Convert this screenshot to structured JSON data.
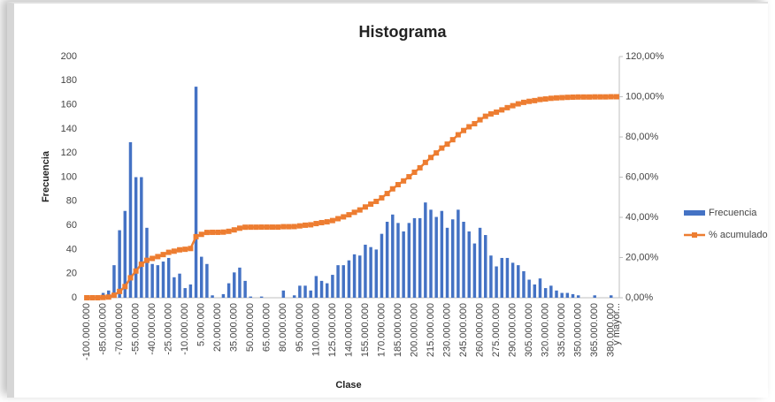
{
  "chart_data": {
    "type": "histogram",
    "title": "Histograma",
    "x_label": "Clase",
    "y_label": "Frecuencia",
    "categories": [
      "-100.000.000",
      null,
      null,
      "-85.000.000",
      null,
      null,
      "-70.000.000",
      null,
      null,
      "-55.000.000",
      null,
      null,
      "-40.000.000",
      null,
      null,
      "-25.000.000",
      null,
      null,
      "-10.000.000",
      null,
      null,
      "5.000.000",
      null,
      null,
      "20.000.000",
      null,
      null,
      "35.000.000",
      null,
      null,
      "50.000.000",
      null,
      null,
      "65.000.000",
      null,
      null,
      "80.000.000",
      null,
      null,
      "95.000.000",
      null,
      null,
      "110.000.000",
      null,
      null,
      "125.000.000",
      null,
      null,
      "140.000.000",
      null,
      null,
      "155.000.000",
      null,
      null,
      "170.000.000",
      null,
      null,
      "185.000.000",
      null,
      null,
      "200.000.000",
      null,
      null,
      "215.000.000",
      null,
      null,
      "230.000.000",
      null,
      null,
      "245.000.000",
      null,
      null,
      "260.000.000",
      null,
      null,
      "275.000.000",
      null,
      null,
      "290.000.000",
      null,
      null,
      "305.000.000",
      null,
      null,
      "320.000.000",
      null,
      null,
      "335.000.000",
      null,
      null,
      "350.000.000",
      null,
      null,
      "365.000.000",
      null,
      null,
      "380.000.000",
      "y mayor..."
    ],
    "series": [
      {
        "name": "Frecuencia",
        "color": "#4472c4",
        "kind": "bar",
        "values": [
          0,
          0,
          0,
          4,
          6,
          27,
          56,
          72,
          129,
          100,
          100,
          58,
          28,
          27,
          30,
          33,
          17,
          20,
          8,
          11,
          175,
          34,
          28,
          2,
          0,
          3,
          12,
          21,
          25,
          14,
          1,
          0,
          1,
          0,
          0,
          0,
          6,
          0,
          2,
          10,
          10,
          6,
          18,
          14,
          12,
          19,
          27,
          27,
          31,
          36,
          35,
          44,
          42,
          40,
          53,
          63,
          69,
          62,
          55,
          62,
          66,
          66,
          79,
          73,
          67,
          72,
          58,
          65,
          73,
          63,
          55,
          45,
          58,
          52,
          35,
          26,
          33,
          33,
          29,
          27,
          22,
          15,
          11,
          16,
          8,
          10,
          6,
          4,
          4,
          3,
          2,
          0,
          0,
          2,
          0,
          0,
          2,
          0
        ]
      },
      {
        "name": "% acumulado",
        "color": "#ed7d31",
        "kind": "line",
        "axis": "y2",
        "values": [
          0,
          0,
          0,
          0.13,
          0.34,
          1.25,
          3.14,
          5.56,
          9.92,
          13.29,
          16.66,
          18.62,
          19.56,
          20.47,
          21.48,
          22.6,
          23.17,
          23.84,
          24.11,
          24.49,
          30.39,
          31.53,
          32.48,
          32.55,
          32.55,
          32.65,
          33.05,
          33.76,
          34.6,
          35.08,
          35.11,
          35.11,
          35.14,
          35.14,
          35.14,
          35.14,
          35.35,
          35.35,
          35.41,
          35.75,
          36.09,
          36.29,
          36.9,
          37.37,
          37.77,
          38.41,
          39.33,
          40.24,
          41.28,
          42.5,
          43.68,
          45.16,
          46.58,
          47.93,
          49.71,
          51.84,
          54.17,
          56.26,
          58.11,
          60.2,
          62.43,
          64.65,
          67.32,
          69.78,
          72.04,
          74.47,
          76.43,
          78.62,
          81.08,
          83.2,
          85.06,
          86.58,
          88.53,
          90.29,
          91.47,
          92.34,
          93.46,
          94.57,
          95.55,
          96.46,
          97.2,
          97.71,
          98.08,
          98.62,
          98.89,
          99.22,
          99.43,
          99.56,
          99.7,
          99.8,
          99.87,
          99.87,
          99.87,
          99.93,
          99.93,
          99.93,
          100,
          100
        ]
      }
    ],
    "ylim": [
      0,
      200
    ],
    "yticks": [
      0,
      20,
      40,
      60,
      80,
      100,
      120,
      140,
      160,
      180,
      200
    ],
    "y2lim": [
      0,
      120
    ],
    "y2ticks": [
      {
        "value": 0,
        "label": "0,00%"
      },
      {
        "value": 20,
        "label": "20,00%"
      },
      {
        "value": 40,
        "label": "40,00%"
      },
      {
        "value": 60,
        "label": "60,00%"
      },
      {
        "value": 80,
        "label": "80,00%"
      },
      {
        "value": 100,
        "label": "100,00%"
      },
      {
        "value": 120,
        "label": "120,00%"
      }
    ],
    "legend": "right"
  }
}
